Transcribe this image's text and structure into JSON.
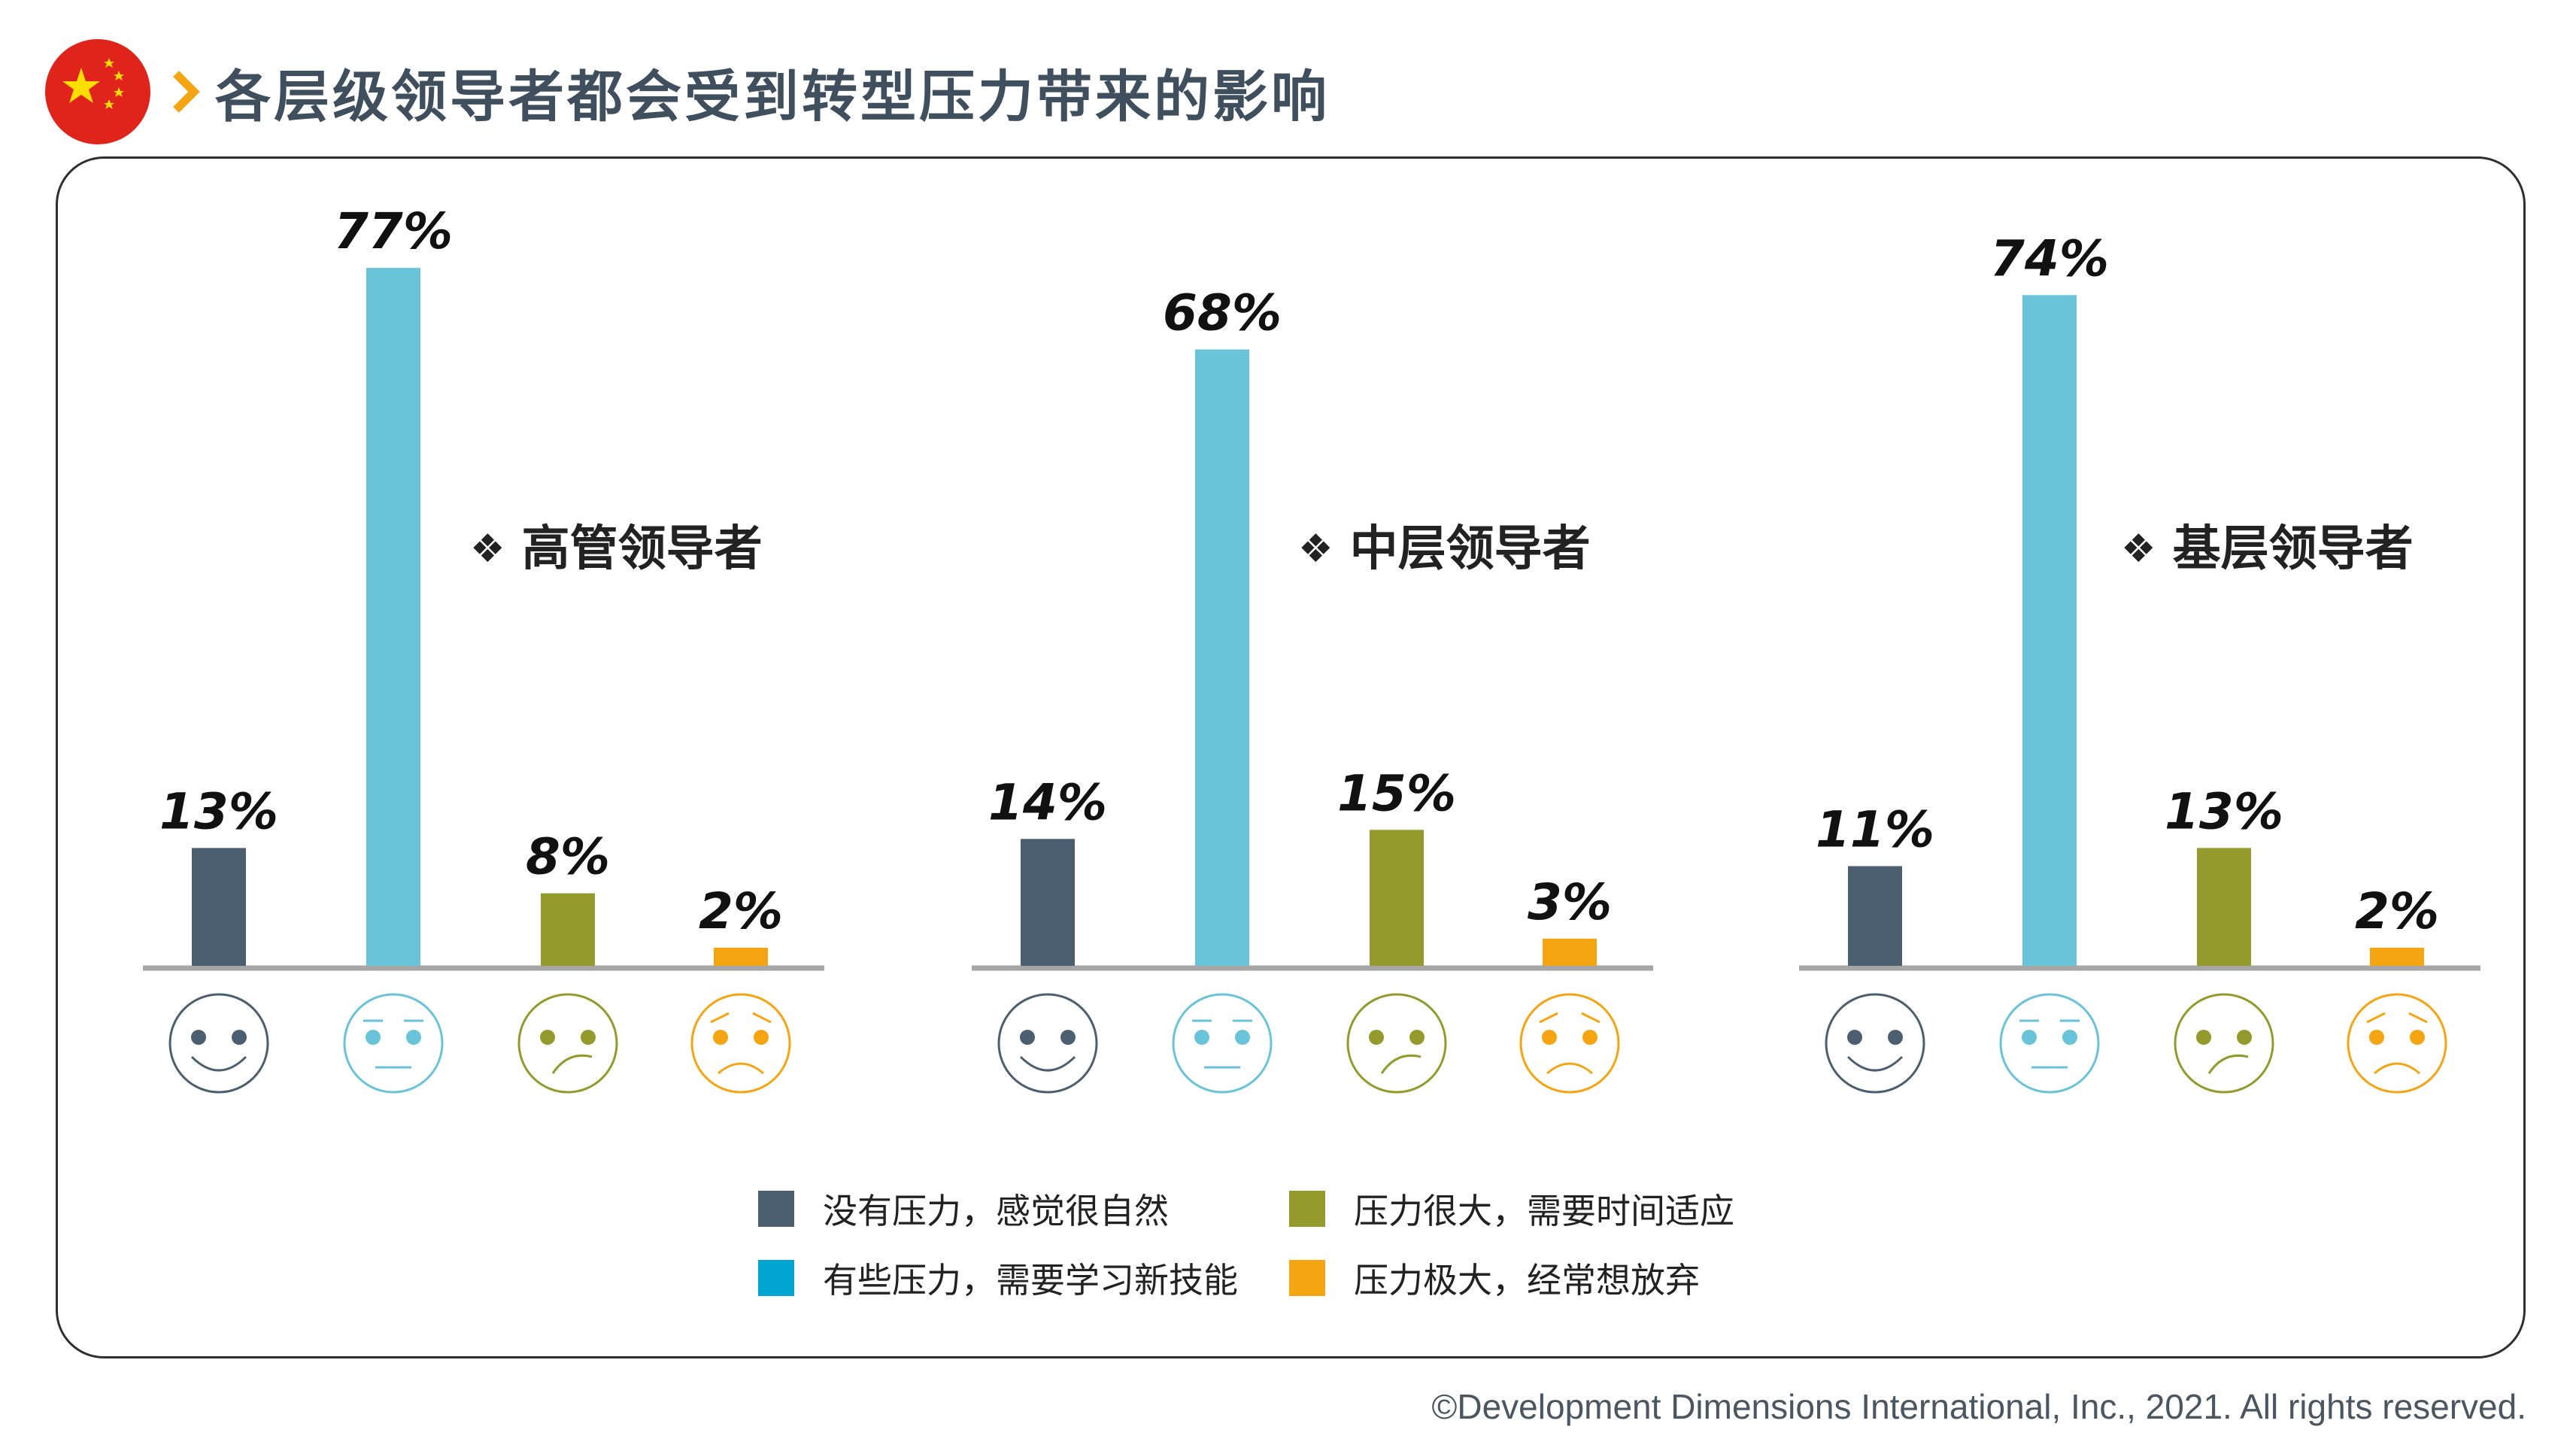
{
  "header": {
    "title": "各层级领导者都会受到转型压力带来的影响",
    "flag": "china-flag"
  },
  "colors": {
    "dark": "#4c5f70",
    "teal": "#6ac4d9",
    "olive": "#949a2b",
    "orange": "#f5a512",
    "axis": "#a6a6a6"
  },
  "chart_data": {
    "type": "bar",
    "groups": [
      {
        "label": "高管领导者",
        "values": [
          13,
          77,
          8,
          2
        ],
        "value_labels": [
          "13%",
          "77%",
          "8%",
          "2%"
        ]
      },
      {
        "label": "中层领导者",
        "values": [
          14,
          68,
          15,
          3
        ],
        "value_labels": [
          "14%",
          "68%",
          "15%",
          "3%"
        ]
      },
      {
        "label": "基层领导者",
        "values": [
          11,
          74,
          13,
          2
        ],
        "value_labels": [
          "11%",
          "74%",
          "13%",
          "2%"
        ]
      }
    ],
    "series": [
      {
        "name": "没有压力，感觉很自然",
        "color": "#4c5f70",
        "face": "happy-face-icon"
      },
      {
        "name": "有些压力，需要学习新技能",
        "color": "#6ac4d9",
        "face": "neutral-face-icon"
      },
      {
        "name": "压力很大，需要时间适应",
        "color": "#949a2b",
        "face": "confused-face-icon"
      },
      {
        "name": "压力极大，经常想放弃",
        "color": "#f5a512",
        "face": "sad-face-icon"
      }
    ],
    "ylim": [
      0,
      80
    ],
    "grid": false,
    "legend_position": "bottom-center"
  },
  "footer": {
    "copyright": "©Development Dimensions International, Inc., 2021. All rights reserved."
  }
}
